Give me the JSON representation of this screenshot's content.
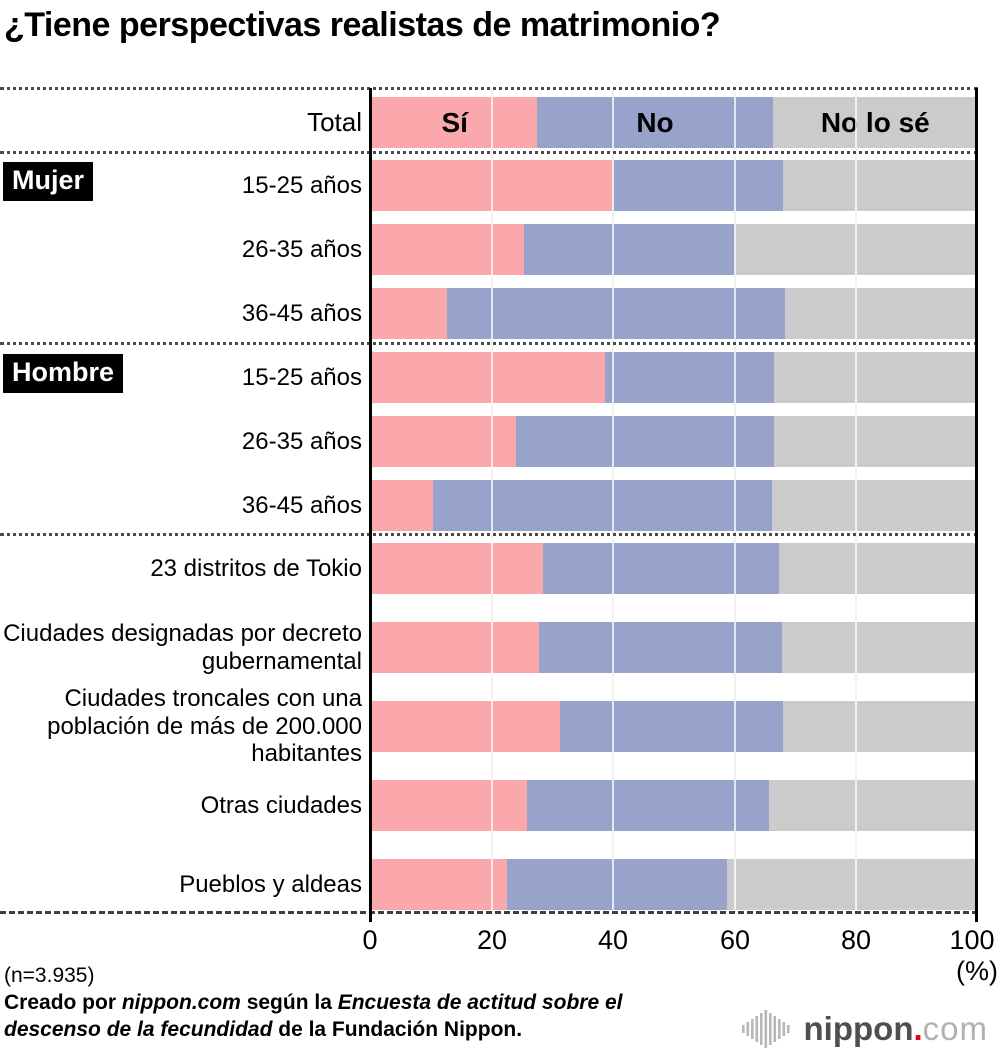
{
  "title": "¿Tiene perspectivas realistas de matrimonio?",
  "colors": {
    "si": "#FBA8AC",
    "no": "#97A3CB",
    "no_lo_se": "#CBCBCB"
  },
  "groups": {
    "mujer": "Mujer",
    "hombre": "Hombre"
  },
  "axis": {
    "ticks": [
      "0",
      "20",
      "40",
      "60",
      "80",
      "100"
    ],
    "unit_label": "(%)"
  },
  "chart_data": {
    "type": "bar",
    "stacked": true,
    "orientation": "horizontal",
    "unit": "%",
    "xlim": [
      0,
      100
    ],
    "xticks": [
      0,
      20,
      40,
      60,
      80,
      100
    ],
    "grid": true,
    "series_names": [
      "Sí",
      "No",
      "No lo sé"
    ],
    "rows": [
      {
        "label": "Total",
        "group": "",
        "values": [
          27.3,
          38.8,
          33.9
        ]
      },
      {
        "label": "15-25 años",
        "group": "Mujer",
        "values": [
          39.8,
          28.0,
          32.2
        ]
      },
      {
        "label": "26-35 años",
        "group": "Mujer",
        "values": [
          25.1,
          34.8,
          40.1
        ]
      },
      {
        "label": "36-45 años",
        "group": "Mujer",
        "values": [
          12.3,
          55.8,
          31.9
        ]
      },
      {
        "label": "15-25 años",
        "group": "Hombre",
        "values": [
          38.5,
          27.8,
          33.7
        ]
      },
      {
        "label": "26-35 años",
        "group": "Hombre",
        "values": [
          23.8,
          42.6,
          33.6
        ]
      },
      {
        "label": "36-45 años",
        "group": "Hombre",
        "values": [
          10.0,
          56.0,
          34.0
        ]
      },
      {
        "label": "23 distritos de Tokio",
        "group": "",
        "values": [
          28.3,
          38.8,
          32.9
        ]
      },
      {
        "label": "Ciudades designadas por decreto gubernamental",
        "group": "",
        "values": [
          27.6,
          40.1,
          32.3
        ]
      },
      {
        "label": "Ciudades troncales con una población de más de 200.000 habitantes",
        "group": "",
        "values": [
          31.1,
          36.7,
          32.2
        ]
      },
      {
        "label": "Otras ciudades",
        "group": "",
        "values": [
          25.5,
          40.0,
          34.5
        ]
      },
      {
        "label": "Pueblos y aldeas",
        "group": "",
        "values": [
          22.2,
          36.3,
          41.5
        ]
      }
    ]
  },
  "footer": {
    "n_label": "(n=3.935)",
    "credit_parts": [
      {
        "t": "Creado por ",
        "i": false
      },
      {
        "t": "nippon.com",
        "i": true
      },
      {
        "t": " según la ",
        "i": false
      },
      {
        "t": "Encuesta de actitud sobre el descenso de la fecundidad",
        "i": true
      },
      {
        "t": " de la Fundación Nippon.",
        "i": false
      }
    ]
  },
  "logo": {
    "brand": "nippon",
    "dot": ".",
    "tld": "com"
  }
}
